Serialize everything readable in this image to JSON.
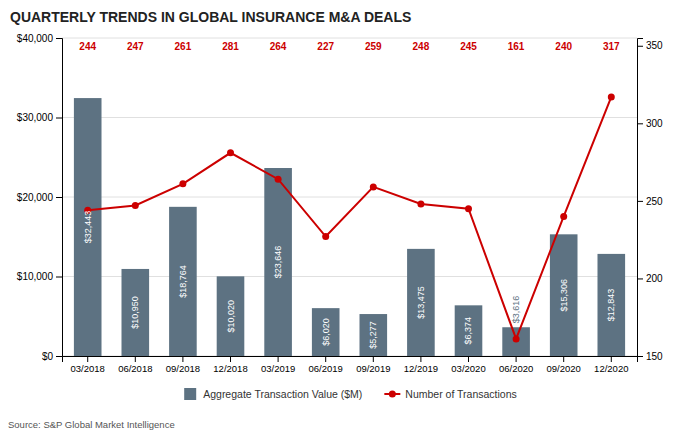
{
  "chart_data": {
    "type": "bar",
    "title": "QUARTERLY TRENDS IN GLOBAL INSURANCE M&A DEALS",
    "source": "Source: S&P Global Market Intelligence",
    "categories": [
      "03/2018",
      "06/2018",
      "09/2018",
      "12/2018",
      "03/2019",
      "06/2019",
      "09/2019",
      "12/2019",
      "03/2020",
      "06/2020",
      "09/2020",
      "12/2020"
    ],
    "series": [
      {
        "name": "Aggregate Transaction Value ($M)",
        "type": "bar",
        "color": "#5d7282",
        "values": [
          32443,
          10950,
          18764,
          10020,
          23646,
          6020,
          5277,
          13475,
          6374,
          3616,
          15306,
          12843
        ],
        "value_labels": [
          "$32,443",
          "$10,950",
          "$18,764",
          "$10,020",
          "$23,646",
          "$6,020",
          "$5,277",
          "$13,475",
          "$6,374",
          "$3,616",
          "$15,306",
          "$12,843"
        ]
      },
      {
        "name": "Number of Transactions",
        "type": "line",
        "color": "#cc0000",
        "axis": "y2",
        "marker": "circle",
        "values": [
          244,
          247,
          261,
          281,
          264,
          227,
          259,
          248,
          245,
          161,
          240,
          317
        ]
      }
    ],
    "data_labels": true,
    "ylim": [
      0,
      40000
    ],
    "yticks": [
      {
        "value": 0,
        "label": "$0"
      },
      {
        "value": 10000,
        "label": "$10,000"
      },
      {
        "value": 20000,
        "label": "$20,000"
      },
      {
        "value": 30000,
        "label": "$30,000"
      },
      {
        "value": 40000,
        "label": "$40,000"
      }
    ],
    "y2lim": [
      150,
      355
    ],
    "y2ticks": [
      150,
      200,
      250,
      300,
      350
    ],
    "grid": true,
    "legend": "bottom"
  }
}
